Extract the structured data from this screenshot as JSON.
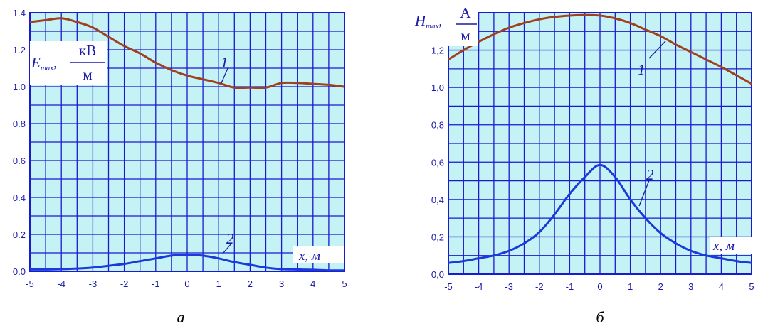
{
  "colors": {
    "background": "#c4f2f5",
    "grid": "#1a1ad0",
    "text": "#1a1aa8",
    "curve1": "#a04020",
    "curve2": "#1a3adc"
  },
  "chart_data": [
    {
      "type": "line",
      "panel_label": "а",
      "ylabel": {
        "symbol": "E",
        "sub": "max",
        "num": "кВ",
        "den": "м"
      },
      "xlabel": "x, м",
      "xlim": [
        -5,
        5
      ],
      "ylim": [
        0,
        1.4
      ],
      "xticks": [
        "-5",
        "-4",
        "-3",
        "-2",
        "-1",
        "0",
        "1",
        "2",
        "3",
        "4",
        "5"
      ],
      "yticks": [
        "0.0",
        "0.2",
        "0.4",
        "0.6",
        "0.8",
        "1.0",
        "1.2",
        "1.4"
      ],
      "grid": true,
      "series": [
        {
          "name": "1",
          "x": [
            -5,
            -4.5,
            -4,
            -3.5,
            -3,
            -2.5,
            -2,
            -1.5,
            -1,
            -0.5,
            0,
            0.5,
            1,
            1.5,
            2,
            2.5,
            3,
            3.5,
            4,
            4.5,
            5
          ],
          "y": [
            1.35,
            1.36,
            1.37,
            1.35,
            1.32,
            1.27,
            1.22,
            1.18,
            1.13,
            1.09,
            1.06,
            1.04,
            1.02,
            0.995,
            0.995,
            0.995,
            1.02,
            1.02,
            1.015,
            1.01,
            1.0
          ]
        },
        {
          "name": "2",
          "x": [
            -5,
            -4.5,
            -4,
            -3.5,
            -3,
            -2.5,
            -2,
            -1.5,
            -1,
            -0.5,
            0,
            0.5,
            1,
            1.5,
            2,
            2.5,
            3,
            3.5,
            4,
            4.5,
            5
          ],
          "y": [
            0.01,
            0.01,
            0.012,
            0.015,
            0.02,
            0.03,
            0.04,
            0.055,
            0.07,
            0.085,
            0.09,
            0.085,
            0.07,
            0.05,
            0.035,
            0.02,
            0.012,
            0.01,
            0.008,
            0.005,
            0.005
          ]
        }
      ]
    },
    {
      "type": "line",
      "panel_label": "б",
      "ylabel": {
        "symbol": "H",
        "sub": "max",
        "num": "А",
        "den": "м"
      },
      "xlabel": "x, м",
      "xlim": [
        -5,
        5
      ],
      "ylim": [
        0,
        1.4
      ],
      "xticks": [
        "-5",
        "-4",
        "-3",
        "-2",
        "-1",
        "0",
        "1",
        "2",
        "3",
        "4",
        "5"
      ],
      "yticks": [
        "0,0",
        "0,2",
        "0,4",
        "0,6",
        "0,8",
        "1,0",
        "1,2"
      ],
      "grid": true,
      "series": [
        {
          "name": "1",
          "x": [
            -5,
            -4.5,
            -4,
            -3.5,
            -3,
            -2.5,
            -2,
            -1.5,
            -1,
            -0.5,
            0,
            0.5,
            1,
            1.5,
            2,
            2.5,
            3,
            3.5,
            4,
            4.5,
            5
          ],
          "y": [
            1.15,
            1.2,
            1.245,
            1.285,
            1.32,
            1.345,
            1.365,
            1.378,
            1.385,
            1.388,
            1.385,
            1.37,
            1.345,
            1.31,
            1.275,
            1.23,
            1.19,
            1.15,
            1.11,
            1.065,
            1.02
          ]
        },
        {
          "name": "2",
          "x": [
            -5,
            -4.5,
            -4,
            -3.5,
            -3,
            -2.5,
            -2,
            -1.5,
            -1,
            -0.5,
            0,
            0.5,
            1,
            1.5,
            2,
            2.5,
            3,
            3.5,
            4,
            4.5,
            5
          ],
          "y": [
            0.06,
            0.07,
            0.085,
            0.1,
            0.125,
            0.165,
            0.225,
            0.32,
            0.43,
            0.52,
            0.585,
            0.52,
            0.4,
            0.3,
            0.22,
            0.165,
            0.125,
            0.1,
            0.085,
            0.07,
            0.06
          ]
        }
      ]
    }
  ]
}
